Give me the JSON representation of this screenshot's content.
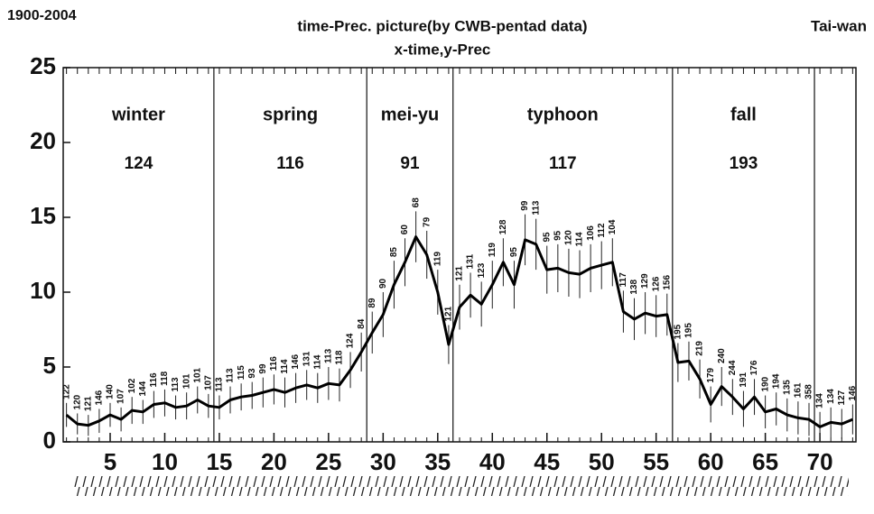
{
  "chart_data": {
    "type": "line",
    "period": "1900-2004",
    "title": "time-Prec. picture(by CWB-pentad data)",
    "subtitle": "x-time,y-Prec",
    "region": "Tai-wan",
    "color": "#000000",
    "x": [
      1,
      2,
      3,
      4,
      5,
      6,
      7,
      8,
      9,
      10,
      11,
      12,
      13,
      14,
      15,
      16,
      17,
      18,
      19,
      20,
      21,
      22,
      23,
      24,
      25,
      26,
      27,
      28,
      29,
      30,
      31,
      32,
      33,
      34,
      35,
      36,
      37,
      38,
      39,
      40,
      41,
      42,
      43,
      44,
      45,
      46,
      47,
      48,
      49,
      50,
      51,
      52,
      53,
      54,
      55,
      56,
      57,
      58,
      59,
      60,
      61,
      62,
      63,
      64,
      65,
      66,
      67,
      68,
      69,
      70,
      71,
      72,
      73
    ],
    "values": [
      1.8,
      1.2,
      1.1,
      1.4,
      1.8,
      1.5,
      2.1,
      2.0,
      2.5,
      2.6,
      2.3,
      2.4,
      2.8,
      2.4,
      2.3,
      2.8,
      3.0,
      3.1,
      3.3,
      3.5,
      3.3,
      3.6,
      3.8,
      3.6,
      3.9,
      3.8,
      4.8,
      6.0,
      7.3,
      8.5,
      10.5,
      12.0,
      13.7,
      12.5,
      10.0,
      6.5,
      9.0,
      9.8,
      9.2,
      10.5,
      12.0,
      10.5,
      13.5,
      13.2,
      11.5,
      11.6,
      11.3,
      11.2,
      11.6,
      11.8,
      12.0,
      8.7,
      8.2,
      8.6,
      8.4,
      8.5,
      5.3,
      5.4,
      4.2,
      2.5,
      3.7,
      3.0,
      2.2,
      3.0,
      2.0,
      2.2,
      1.8,
      1.6,
      1.5,
      1.0,
      1.3,
      1.2,
      1.5
    ],
    "errors": [
      0.8,
      0.7,
      0.7,
      0.8,
      0.8,
      0.8,
      0.9,
      0.8,
      0.9,
      0.9,
      0.8,
      0.9,
      0.9,
      0.8,
      0.8,
      0.9,
      0.9,
      0.9,
      1.0,
      1.0,
      1.0,
      1.0,
      1.0,
      1.0,
      1.1,
      1.1,
      1.2,
      1.3,
      1.4,
      1.5,
      1.6,
      1.6,
      1.7,
      1.6,
      1.5,
      1.3,
      1.5,
      1.5,
      1.5,
      1.6,
      1.6,
      1.6,
      1.7,
      1.7,
      1.6,
      1.6,
      1.6,
      1.6,
      1.6,
      1.6,
      1.6,
      1.4,
      1.4,
      1.4,
      1.4,
      1.4,
      1.3,
      1.3,
      1.3,
      1.2,
      1.3,
      1.2,
      1.2,
      1.2,
      1.1,
      1.1,
      1.1,
      1.1,
      1.1,
      1.0,
      1.0,
      1.0,
      1.0
    ],
    "counts": [
      122,
      120,
      121,
      146,
      140,
      107,
      102,
      144,
      116,
      118,
      113,
      101,
      101,
      107,
      113,
      113,
      115,
      93,
      99,
      116,
      114,
      146,
      131,
      114,
      113,
      118,
      124,
      84,
      89,
      90,
      85,
      60,
      68,
      79,
      119,
      121,
      121,
      131,
      123,
      119,
      128,
      95,
      99,
      113,
      95,
      95,
      120,
      114,
      106,
      112,
      104,
      117,
      138,
      129,
      126,
      156,
      195,
      195,
      219,
      179,
      240,
      244,
      191,
      176,
      190,
      194,
      135,
      161,
      358,
      134,
      134,
      127,
      146
    ],
    "seasons": [
      {
        "label": "winter",
        "count": 124,
        "start": 0.7,
        "end": 14.5
      },
      {
        "label": "spring",
        "count": 116,
        "start": 14.5,
        "end": 28.5
      },
      {
        "label": "mei-yu",
        "count": 91,
        "start": 28.5,
        "end": 36.4
      },
      {
        "label": "typhoon",
        "count": 117,
        "start": 36.4,
        "end": 56.5
      },
      {
        "label": "fall",
        "count": 193,
        "start": 56.5,
        "end": 69.5
      }
    ],
    "xlim": [
      0.7,
      73.3
    ],
    "ylim": [
      0,
      25
    ],
    "xticks": [
      5,
      10,
      15,
      20,
      25,
      30,
      35,
      40,
      45,
      50,
      55,
      60,
      65,
      70
    ],
    "yticks": [
      0,
      5,
      10,
      15,
      20,
      25
    ]
  }
}
